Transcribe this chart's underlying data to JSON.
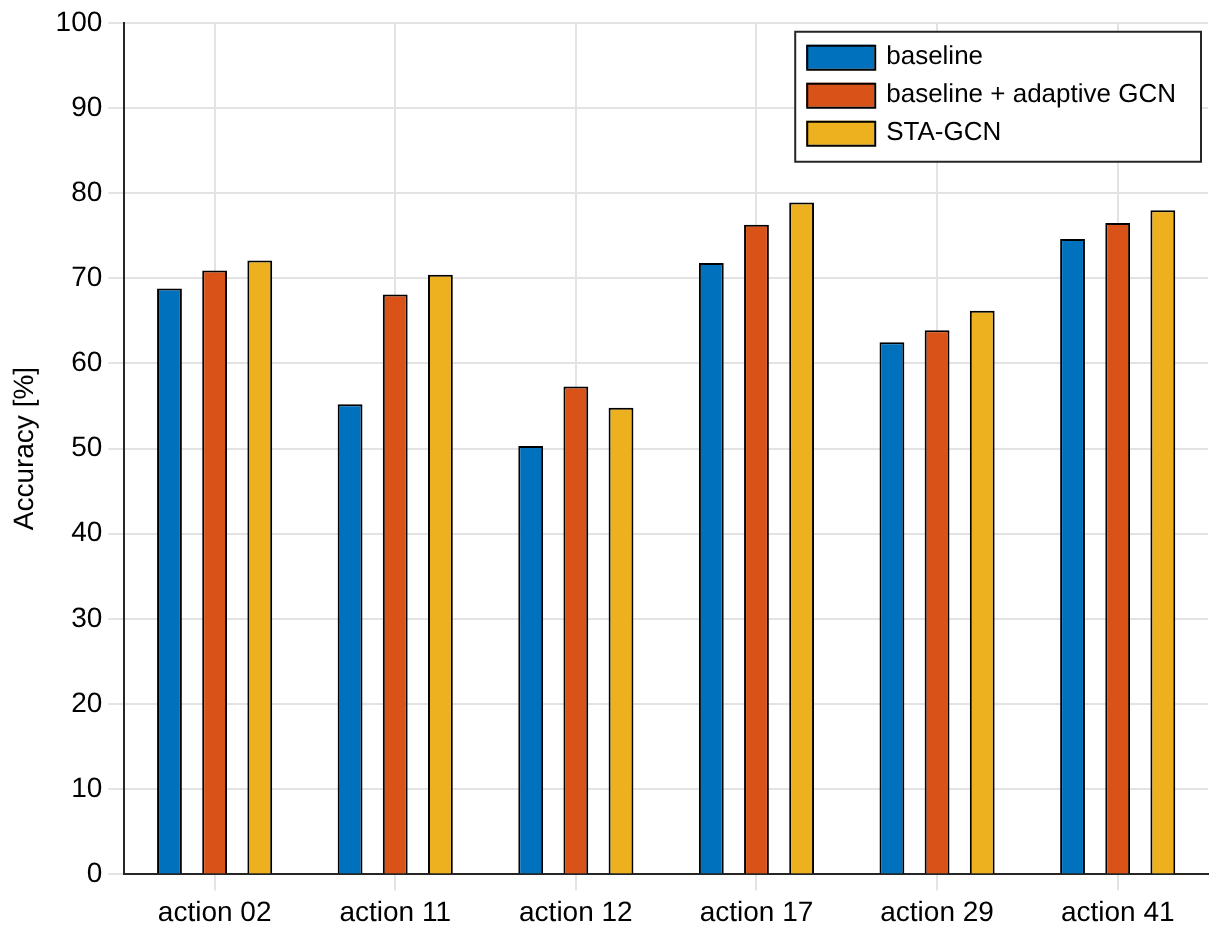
{
  "chart_data": {
    "type": "bar",
    "ylabel": "Accuracy [%]",
    "categories": [
      "action 02",
      "action 11",
      "action 12",
      "action 17",
      "action 29",
      "action 41"
    ],
    "series": [
      {
        "name": "baseline",
        "color": "#0072bd",
        "values": [
          68.8,
          55.2,
          50.3,
          71.8,
          62.5,
          74.6
        ]
      },
      {
        "name": "baseline + adaptive GCN",
        "color": "#d95319",
        "values": [
          70.9,
          68.1,
          57.3,
          76.3,
          63.9,
          76.5
        ]
      },
      {
        "name": "STA-GCN",
        "color": "#edb120",
        "values": [
          72.1,
          70.4,
          54.8,
          78.9,
          66.2,
          78.0
        ]
      }
    ],
    "ylim": [
      0,
      100
    ],
    "yticks": [
      0,
      10,
      20,
      30,
      40,
      50,
      60,
      70,
      80,
      90,
      100
    ],
    "grid": true,
    "legend": "top right"
  }
}
